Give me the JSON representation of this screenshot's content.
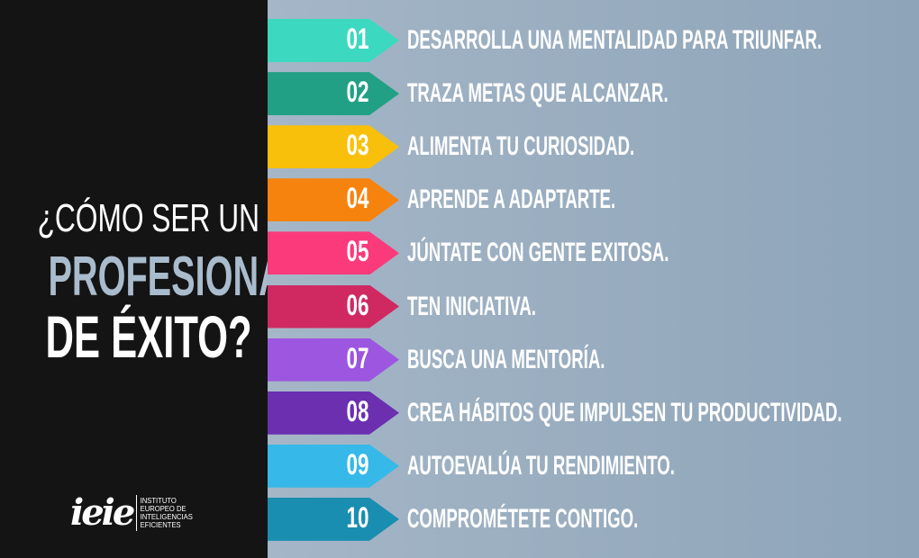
{
  "title": {
    "line1": "¿CÓMO SER UN",
    "line2": "PROFESIONAL",
    "line3": "DE ÉXITO?"
  },
  "logo": {
    "mark": "ieie",
    "text": [
      "INSTITUTO",
      "EUROPEO DE",
      "INTELIGENCIAS",
      "EFICIENTES"
    ]
  },
  "items": [
    {
      "num": "01",
      "label": "DESARROLLA UNA MENTALIDAD PARA TRIUNFAR.",
      "color": "#3dd8c0"
    },
    {
      "num": "02",
      "label": "TRAZA METAS QUE ALCANZAR.",
      "color": "#22a086"
    },
    {
      "num": "03",
      "label": "ALIMENTA TU CURIOSIDAD.",
      "color": "#f8c00b"
    },
    {
      "num": "04",
      "label": "APRENDE A ADAPTARTE.",
      "color": "#f7830f"
    },
    {
      "num": "05",
      "label": "JÚNTATE CON GENTE EXITOSA.",
      "color": "#fb3a7b"
    },
    {
      "num": "06",
      "label": "TEN INICIATIVA.",
      "color": "#d02962"
    },
    {
      "num": "07",
      "label": "BUSCA UNA MENTORÍA.",
      "color": "#9c56e0"
    },
    {
      "num": "08",
      "label": "CREA HÁBITOS QUE IMPULSEN TU PRODUCTIVIDAD.",
      "color": "#6b2fb0"
    },
    {
      "num": "09",
      "label": "AUTOEVALÚA TU RENDIMIENTO.",
      "color": "#36b9e8"
    },
    {
      "num": "10",
      "label": "COMPROMÉTETE CONTIGO.",
      "color": "#1a8eb0"
    }
  ]
}
